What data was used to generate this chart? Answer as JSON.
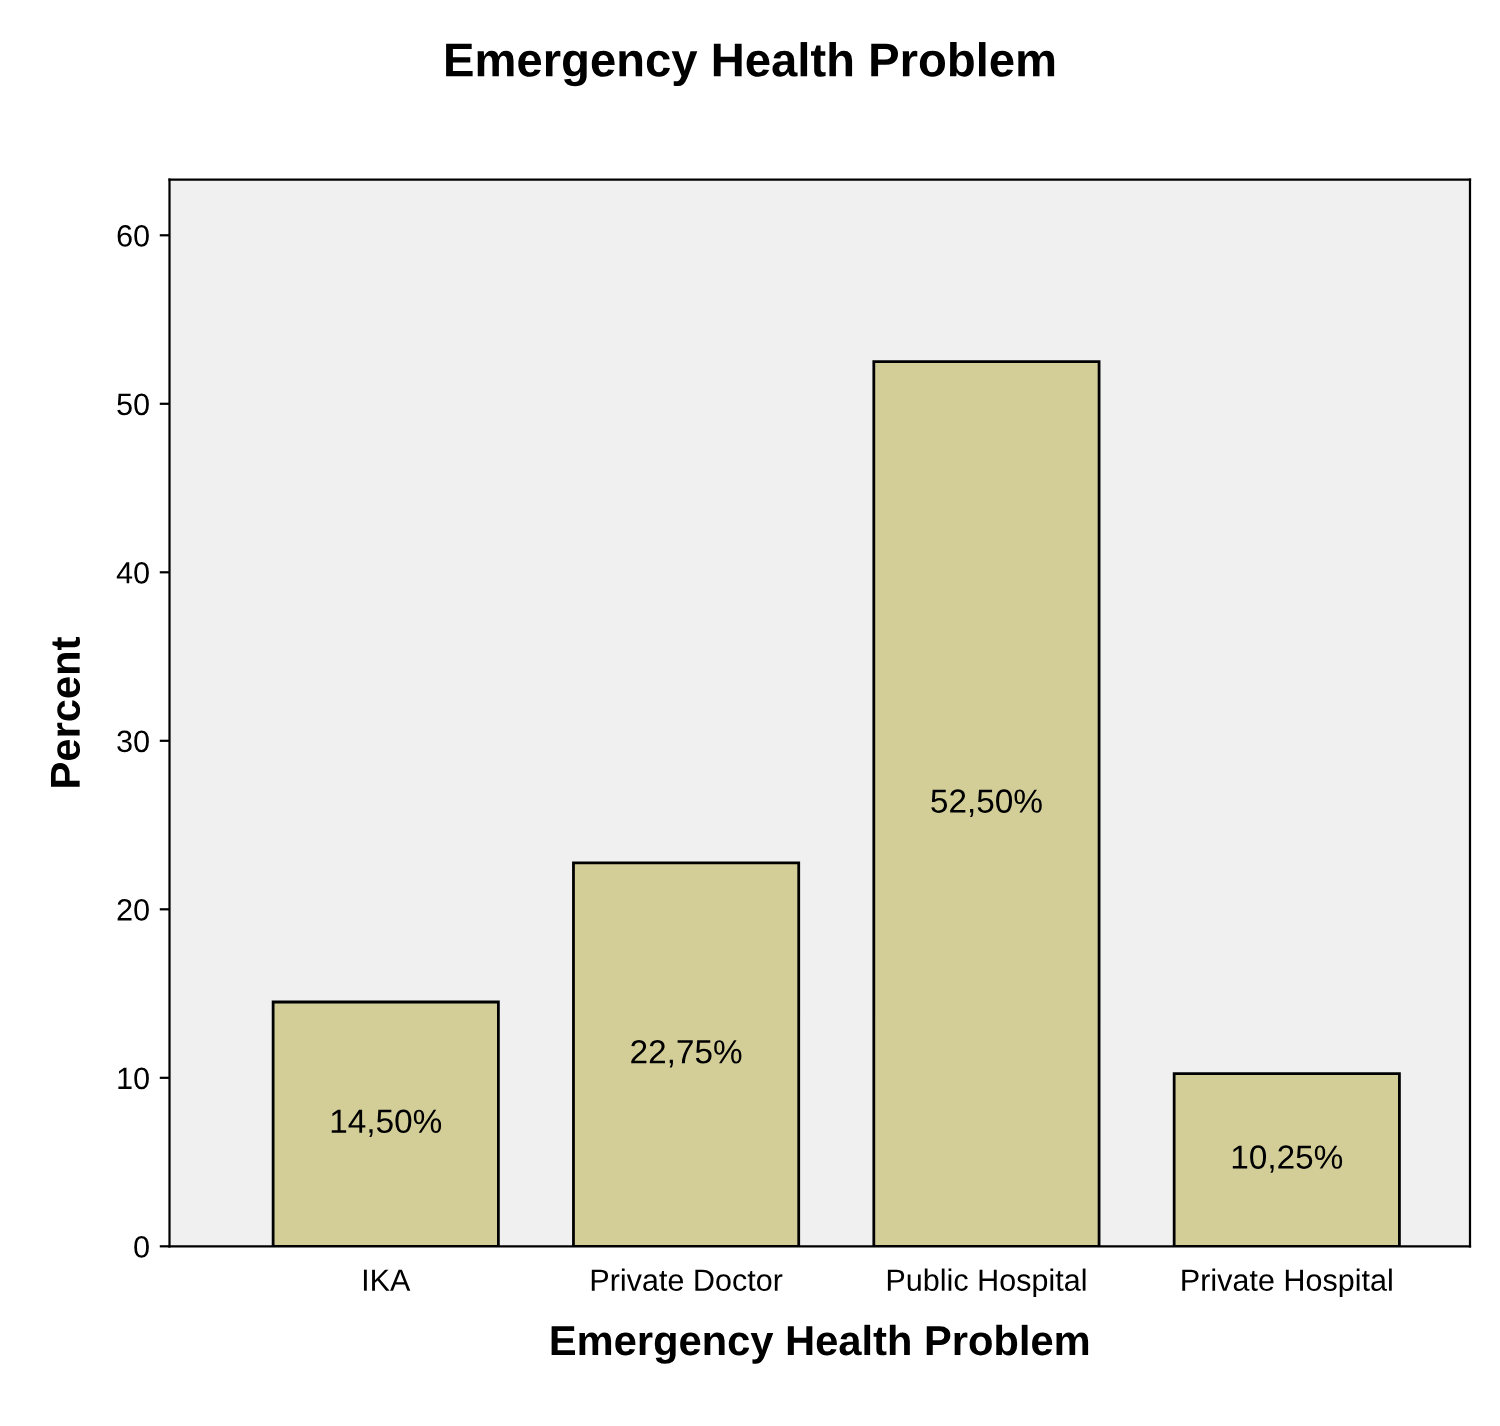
{
  "chart_data": {
    "type": "bar",
    "title": "Emergency Health Problem",
    "xlabel": "Emergency Health Problem",
    "ylabel": "Percent",
    "categories": [
      "IKA",
      "Private Doctor",
      "Public Hospital",
      "Private Hospital"
    ],
    "values": [
      14.5,
      22.75,
      52.5,
      10.25
    ],
    "value_labels": [
      "14,50%",
      "22,75%",
      "52,50%",
      "10,25%"
    ],
    "color": "#d3ce97",
    "ylim": [
      0,
      63.3
    ],
    "yticks": [
      0,
      10,
      20,
      30,
      40,
      50,
      60
    ],
    "grid": false,
    "legend": false
  }
}
